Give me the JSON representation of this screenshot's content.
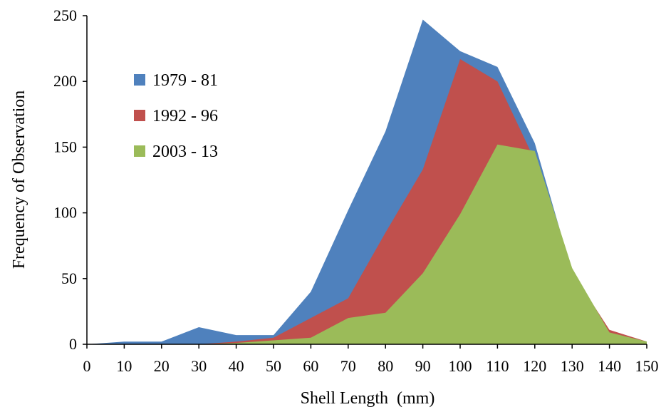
{
  "chart_data": {
    "type": "area",
    "title": "",
    "xlabel": "Shell Length  (mm)",
    "ylabel": "Frequency of Observation",
    "x": [
      0,
      10,
      20,
      30,
      40,
      50,
      60,
      70,
      80,
      90,
      100,
      110,
      120,
      130,
      140,
      150
    ],
    "xlim": [
      0,
      150
    ],
    "ylim": [
      0,
      250
    ],
    "x_ticks": [
      "0",
      "10",
      "20",
      "30",
      "40",
      "50",
      "60",
      "70",
      "80",
      "90",
      "100",
      "110",
      "120",
      "130",
      "140",
      "150"
    ],
    "y_ticks": [
      "0",
      "50",
      "100",
      "150",
      "200",
      "250"
    ],
    "grid": false,
    "legend_position": "upper-left",
    "series": [
      {
        "name": "1979 - 81",
        "color": "#4F81BD",
        "values": [
          0,
          2,
          2,
          13,
          7,
          7,
          40,
          102,
          162,
          247,
          223,
          211,
          153,
          55,
          10,
          2
        ]
      },
      {
        "name": "1992 - 96",
        "color": "#C0504D",
        "values": [
          0,
          0,
          0,
          0,
          2,
          5,
          20,
          35,
          85,
          133,
          217,
          200,
          140,
          55,
          11,
          2
        ]
      },
      {
        "name": "2003 - 13",
        "color": "#9BBB59",
        "values": [
          0,
          0,
          0,
          0,
          1,
          3,
          5,
          20,
          24,
          54,
          99,
          152,
          147,
          58,
          9,
          2
        ]
      }
    ]
  }
}
